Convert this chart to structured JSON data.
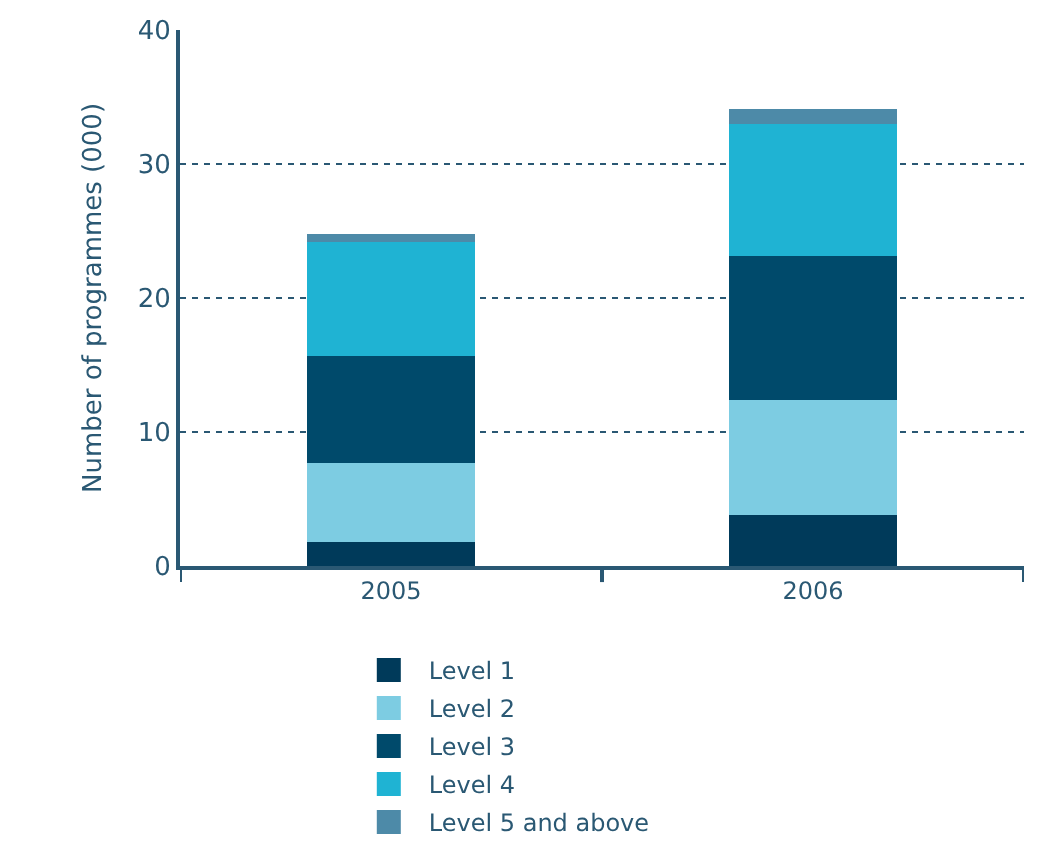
{
  "chart_data": {
    "type": "bar",
    "stacked": true,
    "ylabel": "Number of programmes (000)",
    "categories": [
      "2005",
      "2006"
    ],
    "series": [
      {
        "name": "Level 1",
        "color": "#003a5a",
        "values": [
          1.8,
          3.8
        ]
      },
      {
        "name": "Level 2",
        "color": "#7dcce2",
        "values": [
          5.9,
          8.6
        ]
      },
      {
        "name": "Level 3",
        "color": "#004a6b",
        "values": [
          8.0,
          10.7
        ]
      },
      {
        "name": "Level 4",
        "color": "#1fb3d3",
        "values": [
          8.5,
          9.9
        ]
      },
      {
        "name": "Level 5 and above",
        "color": "#4d8aa8",
        "values": [
          0.6,
          1.1
        ]
      }
    ],
    "ylim": [
      0,
      40
    ],
    "yticks": [
      0,
      10,
      20,
      30,
      40
    ],
    "grid": "y",
    "legend": "bottom"
  }
}
